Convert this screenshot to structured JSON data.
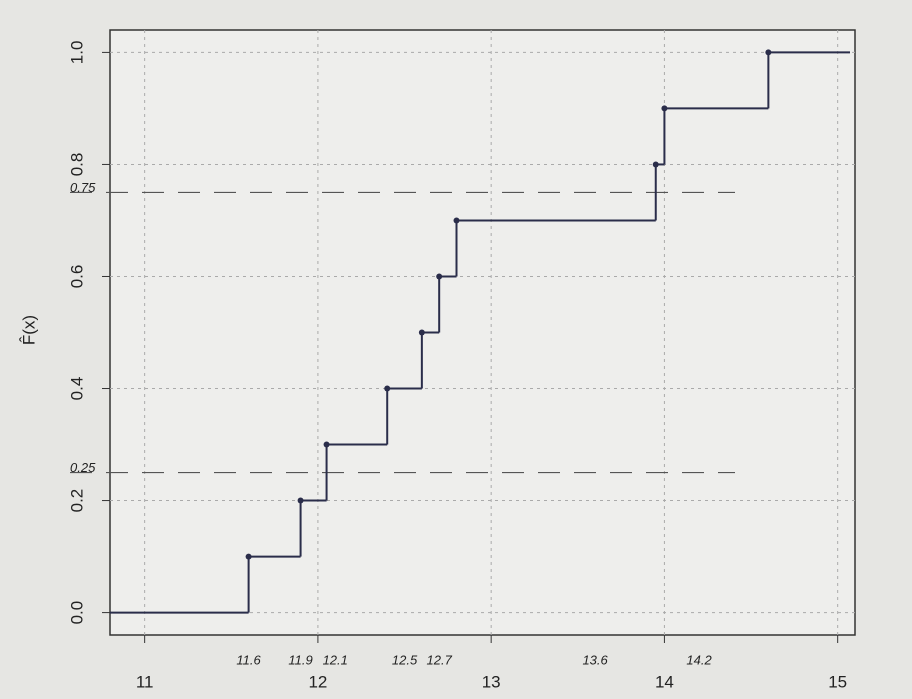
{
  "chart_data": {
    "type": "step",
    "ylabel": "F̂(x)",
    "x": [
      11.6,
      11.9,
      12.05,
      12.4,
      12.6,
      12.7,
      12.8,
      13.95,
      14.0,
      14.6
    ],
    "values": [
      0.1,
      0.2,
      0.3,
      0.4,
      0.5,
      0.6,
      0.7,
      0.8,
      0.9,
      1.0
    ],
    "color": "#2a2d4a",
    "xlim": [
      10.8,
      15.1
    ],
    "ylim": [
      -0.04,
      1.04
    ],
    "xticks": [
      11,
      12,
      13,
      14,
      15
    ],
    "yticks": [
      {
        "value": 0,
        "label": "0.0"
      },
      0.2,
      0.4,
      0.6,
      0.8,
      {
        "value": 1,
        "label": "1.0"
      }
    ],
    "grid": true,
    "x_annotations": [
      {
        "value": 11.6,
        "label": "11.6"
      },
      {
        "value": 11.9,
        "label": "11.9"
      },
      {
        "value": 12.1,
        "label": "12.1"
      },
      {
        "value": 12.5,
        "label": "12.5"
      },
      {
        "value": 12.7,
        "label": "12.7"
      },
      {
        "value": 13.6,
        "label": "13.6"
      },
      {
        "value": 14.2,
        "label": "14.2"
      }
    ],
    "y_annotations": [
      {
        "value": 0.25,
        "label": "0.25"
      },
      {
        "value": 0.75,
        "label": "0.75"
      }
    ],
    "annotation_color": "#3a4aa0"
  }
}
